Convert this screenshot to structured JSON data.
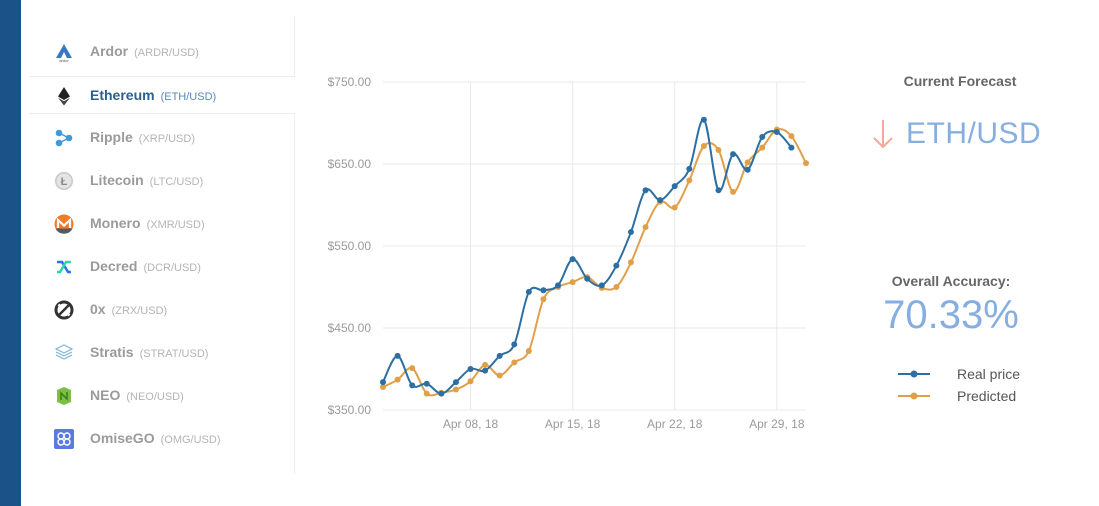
{
  "sidebar": {
    "items": [
      {
        "name": "Ardor",
        "pair": "(ARDR/USD)",
        "icon": "ardor-icon",
        "active": false
      },
      {
        "name": "Ethereum",
        "pair": "(ETH/USD)",
        "icon": "ethereum-icon",
        "active": true
      },
      {
        "name": "Ripple",
        "pair": "(XRP/USD)",
        "icon": "ripple-icon",
        "active": false
      },
      {
        "name": "Litecoin",
        "pair": "(LTC/USD)",
        "icon": "litecoin-icon",
        "active": false
      },
      {
        "name": "Monero",
        "pair": "(XMR/USD)",
        "icon": "monero-icon",
        "active": false
      },
      {
        "name": "Decred",
        "pair": "(DCR/USD)",
        "icon": "decred-icon",
        "active": false
      },
      {
        "name": "0x",
        "pair": "(ZRX/USD)",
        "icon": "zrx-icon",
        "active": false
      },
      {
        "name": "Stratis",
        "pair": "(STRAT/USD)",
        "icon": "stratis-icon",
        "active": false
      },
      {
        "name": "NEO",
        "pair": "(NEO/USD)",
        "icon": "neo-icon",
        "active": false
      },
      {
        "name": "OmiseGO",
        "pair": "(OMG/USD)",
        "icon": "omisego-icon",
        "active": false
      }
    ]
  },
  "forecast": {
    "title": "Current Forecast",
    "pair": "ETH/USD",
    "direction": "down",
    "arrow_color": "#f3a89a"
  },
  "accuracy": {
    "title": "Overall Accuracy:",
    "value": "70.33%"
  },
  "chart_data": {
    "type": "line",
    "ylim": [
      350,
      750
    ],
    "yticks": [
      350,
      450,
      550,
      650,
      750
    ],
    "ytick_labels": [
      "$350.00",
      "$450.00",
      "$550.00",
      "$650.00",
      "$750.00"
    ],
    "xrange": [
      "2018-04-02",
      "2018-05-01"
    ],
    "xticks": [
      "2018-04-08",
      "2018-04-15",
      "2018-04-22",
      "2018-04-29"
    ],
    "xtick_labels": [
      "Apr 08, 18",
      "Apr 15, 18",
      "Apr 22, 18",
      "Apr 29, 18"
    ],
    "grid": true,
    "legend_position": "right",
    "series": [
      {
        "name": "Real price",
        "color": "#2d6fa3",
        "x": [
          "2018-04-02",
          "2018-04-03",
          "2018-04-04",
          "2018-04-05",
          "2018-04-06",
          "2018-04-07",
          "2018-04-08",
          "2018-04-09",
          "2018-04-10",
          "2018-04-11",
          "2018-04-12",
          "2018-04-13",
          "2018-04-14",
          "2018-04-15",
          "2018-04-16",
          "2018-04-17",
          "2018-04-18",
          "2018-04-19",
          "2018-04-20",
          "2018-04-21",
          "2018-04-22",
          "2018-04-23",
          "2018-04-24",
          "2018-04-25",
          "2018-04-26",
          "2018-04-27",
          "2018-04-28",
          "2018-04-29",
          "2018-04-30"
        ],
        "values": [
          384,
          416,
          380,
          382,
          370,
          384,
          400,
          398,
          416,
          430,
          494,
          496,
          502,
          534,
          510,
          502,
          526,
          567,
          618,
          606,
          623,
          644,
          704,
          618,
          662,
          643,
          683,
          689,
          670
        ]
      },
      {
        "name": "Predicted",
        "color": "#e0a049",
        "x": [
          "2018-04-02",
          "2018-04-03",
          "2018-04-04",
          "2018-04-05",
          "2018-04-06",
          "2018-04-07",
          "2018-04-08",
          "2018-04-09",
          "2018-04-10",
          "2018-04-11",
          "2018-04-12",
          "2018-04-13",
          "2018-04-14",
          "2018-04-15",
          "2018-04-16",
          "2018-04-17",
          "2018-04-18",
          "2018-04-19",
          "2018-04-20",
          "2018-04-21",
          "2018-04-22",
          "2018-04-23",
          "2018-04-24",
          "2018-04-25",
          "2018-04-26",
          "2018-04-27",
          "2018-04-28",
          "2018-04-29",
          "2018-04-30",
          "2018-05-01"
        ],
        "values": [
          378,
          387,
          401,
          370,
          371,
          375,
          385,
          405,
          392,
          408,
          422,
          485,
          500,
          506,
          512,
          499,
          500,
          530,
          573,
          604,
          597,
          630,
          672,
          667,
          616,
          652,
          670,
          692,
          684,
          651
        ]
      }
    ]
  }
}
